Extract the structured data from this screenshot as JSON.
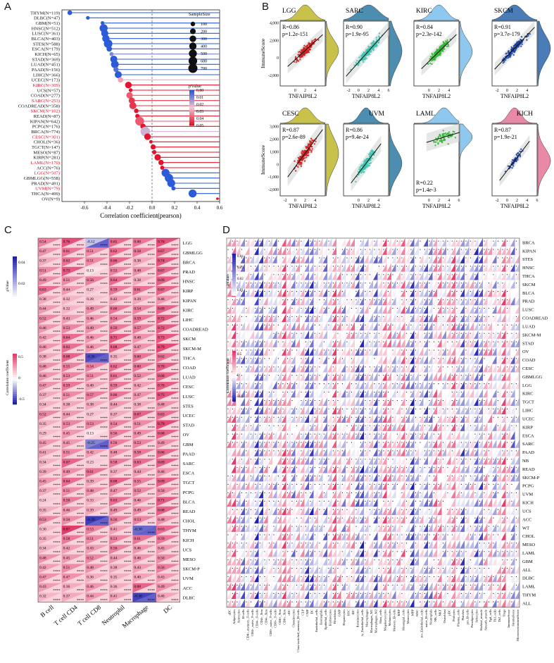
{
  "figure": {
    "panel_a_letter": "A",
    "panel_b_letter": "B",
    "panel_c_letter": "C",
    "panel_d_letter": "D"
  },
  "colors": {
    "p_high": "#2b5bd8",
    "p_mid": "#f5c6d4",
    "p_low": "#e4122b",
    "pos_corr": "#e23c6a",
    "neg_corr": "#1f1fb0",
    "scatter": [
      "#cc1f1f",
      "#3bc4b0",
      "#2fb62f",
      "#1c3e9c",
      "#cc1f1f",
      "#3bc4b0",
      "#2fb62f",
      "#1c3e9c"
    ],
    "density": [
      "#c8c24a",
      "#4c8db0",
      "#8ec8ee",
      "#4a7db8",
      "#c8c24a",
      "#4c8db0",
      "#8ec8ee",
      "#e88aa6"
    ]
  },
  "chart_data": [
    {
      "type": "scatter",
      "panel": "A",
      "title": "",
      "xlabel": "Correlation coefficient(pearson)",
      "ylabel": "",
      "xlim": [
        -0.8,
        0.6
      ],
      "xticks": [
        "-0.6",
        "-0.4",
        "-0.2",
        "0.0",
        "0.2",
        "0.4",
        "0.6"
      ],
      "xtick_values": [
        -0.6,
        -0.4,
        -0.2,
        0.0,
        0.2,
        0.4,
        0.6
      ],
      "categories": [
        "THYM(N=119)",
        "DLBC(N=47)",
        "GBM(N=51)",
        "HNSC(N=512)",
        "LUSC(N=361)",
        "BLCA(N=403)",
        "STES(N=588)",
        "ESCA(N=179)",
        "KICH(N=65)",
        "STAD(N=369)",
        "LUAD(N=451)",
        "PAAD(N=156)",
        "LIHC(N=366)",
        "UCEC(N=173)",
        "KIRC(N=309)",
        "UCS(N=57)",
        "COAD(N=277)",
        "SARC(N=253)",
        "COADREAD(N=358)",
        "SKCM(N=102)",
        "READ(N=87)",
        "KIPAN(N=642)",
        "PCPG(N=176)",
        "BRCA(N=774)",
        "CESC(N=301)",
        "CHOL(N=36)",
        "TGCT(N=147)",
        "MESO(N=87)",
        "KIRP(N=281)",
        "LAML(N=170)",
        "ACC(N=76)",
        "LGG(N=507)",
        "GBMLGG(N=558)",
        "PRAD(N=491)",
        "UVM(N=79)",
        "THCA(N=499)",
        "OV(N=9)"
      ],
      "highlight": [
        "KIRC(N=309)",
        "SARC(N=253)",
        "SKCM(N=102)",
        "CESC(N=301)",
        "LAML(N=170)",
        "LGG(N=507)",
        "UVM(N=79)"
      ],
      "values": [
        -0.73,
        -0.57,
        -0.44,
        -0.43,
        -0.42,
        -0.41,
        -0.39,
        -0.38,
        -0.36,
        -0.34,
        -0.33,
        -0.32,
        -0.3,
        -0.28,
        -0.21,
        -0.19,
        -0.2,
        -0.18,
        -0.17,
        -0.14,
        -0.13,
        -0.11,
        -0.08,
        -0.06,
        -0.04,
        -0.01,
        0.01,
        0.02,
        0.05,
        0.08,
        0.09,
        0.12,
        0.15,
        0.17,
        0.19,
        0.36,
        0.58
      ],
      "pvalues": [
        0.0,
        0.0,
        0.0,
        0.0,
        0.0,
        0.0,
        0.0,
        0.0,
        0.01,
        0.0,
        0.0,
        0.005,
        0.0,
        0.03,
        0.05,
        0.05,
        0.04,
        0.045,
        0.045,
        0.05,
        0.05,
        0.04,
        0.05,
        0.02,
        0.05,
        0.05,
        0.05,
        0.05,
        0.05,
        0.05,
        0.05,
        0.0,
        0.0,
        0.0,
        0.0,
        0.0,
        0.05
      ],
      "sizes": [
        119,
        47,
        51,
        512,
        361,
        403,
        588,
        179,
        65,
        369,
        451,
        156,
        366,
        173,
        309,
        57,
        277,
        253,
        358,
        102,
        87,
        642,
        176,
        774,
        301,
        36,
        147,
        87,
        281,
        170,
        76,
        507,
        558,
        491,
        79,
        499,
        9
      ],
      "legend_size": {
        "title": "SampleSize",
        "labels": [
          "100",
          "200",
          "300",
          "400",
          "500",
          "600",
          "700"
        ],
        "values": [
          100,
          200,
          300,
          400,
          500,
          600,
          700
        ]
      },
      "legend_p": {
        "title": "pValue",
        "labels": [
          "0.00",
          "0.01",
          "0.02",
          "0.03",
          "0.04",
          "0.05"
        ]
      }
    },
    {
      "type": "scatter",
      "panel": "B",
      "ylabel": "ImmuneScore",
      "xlabel": "TNFAIP8L2",
      "row1_yticks": [
        "4,000",
        "2,000",
        "0",
        "-2,000"
      ],
      "row1_ytick_values": [
        4000,
        2000,
        0,
        -2000
      ],
      "row2_yticks": [
        "3,000",
        "2,000",
        "1,000",
        "0",
        "-1,000",
        "-2,000"
      ],
      "row2_ytick_values": [
        3000,
        2000,
        1000,
        0,
        -1000,
        -2000
      ],
      "ylim_row1": [
        -3200,
        4200
      ],
      "ylim_row2": [
        -2500,
        3200
      ],
      "xlim": [
        -3,
        6
      ],
      "xticks": [
        "-2",
        "0",
        "2",
        "4",
        "6"
      ],
      "xtick_values": [
        -2,
        0,
        2,
        4,
        6
      ],
      "subplots": [
        {
          "name": "LGG",
          "r": "R=0.86",
          "p": "p=1.2e-151",
          "slope": 520,
          "intercept": -200,
          "xrange": [
            -1,
            5
          ],
          "spread": 500,
          "xticks": [
            "0",
            "2",
            "4"
          ],
          "xtick_values": [
            0,
            2,
            4
          ]
        },
        {
          "name": "SARC",
          "r": "R=0.90",
          "p": "p=1.9e-95",
          "slope": 640,
          "intercept": -500,
          "xrange": [
            -2,
            6
          ],
          "spread": 500,
          "xticks": [
            "-2",
            "0",
            "2",
            "4",
            "6"
          ],
          "xtick_values": [
            -2,
            0,
            2,
            4,
            6
          ]
        },
        {
          "name": "KIRC",
          "r": "R=0.84",
          "p": "p=2.3e-142",
          "slope": 560,
          "intercept": -400,
          "xrange": [
            -1,
            5
          ],
          "spread": 500,
          "xticks": [
            "0",
            "2",
            "4"
          ],
          "xtick_values": [
            0,
            2,
            4
          ]
        },
        {
          "name": "SKCM",
          "r": "R=0.91",
          "p": "p=3.7e-179",
          "slope": 600,
          "intercept": 200,
          "xrange": [
            -2,
            5
          ],
          "spread": 450,
          "xticks": [
            "-2",
            "0",
            "2",
            "4"
          ],
          "xtick_values": [
            -2,
            0,
            2,
            4
          ]
        },
        {
          "name": "CESC",
          "r": "R=0.87",
          "p": "p=2.6e-89",
          "slope": 540,
          "intercept": -200,
          "xrange": [
            -1,
            5
          ],
          "spread": 450,
          "xticks": [
            "-2",
            "0",
            "2",
            "4"
          ],
          "xtick_values": [
            -2,
            0,
            2,
            4
          ]
        },
        {
          "name": "UVM",
          "r": "R=0.86",
          "p": "p=9.4e-24",
          "slope": 520,
          "intercept": -700,
          "xrange": [
            -1,
            4
          ],
          "spread": 400,
          "xticks": [
            "0",
            "2",
            "4"
          ],
          "xtick_values": [
            0,
            2,
            4
          ]
        },
        {
          "name": "LAML",
          "r": "R=0.22",
          "p": "p=1.4e-3",
          "slope": 120,
          "intercept": 1800,
          "xrange": [
            0,
            6
          ],
          "spread": 450,
          "xticks": [
            "0",
            "2",
            "4",
            "6"
          ],
          "xtick_values": [
            0,
            2,
            4,
            6
          ]
        },
        {
          "name": "KICH",
          "r": "R=0.87",
          "p": "p=1.9e-21",
          "slope": 520,
          "intercept": -500,
          "xrange": [
            -1,
            4
          ],
          "spread": 300,
          "xticks": [
            "-2",
            "0",
            "2",
            "4",
            "6"
          ],
          "xtick_values": [
            -2,
            0,
            2,
            4,
            6
          ]
        }
      ]
    },
    {
      "type": "heatmap",
      "panel": "C",
      "columns": [
        "B cell",
        "T cell CD4",
        "T cell CD8",
        "Neutrophil",
        "Macrophage",
        "DC"
      ],
      "rows": [
        "LGG",
        "GBMLGG",
        "BRCA",
        "PRAD",
        "HNSC",
        "KIRP",
        "KIPAN",
        "KIRC",
        "LIHC",
        "COADREAD",
        "SKCM",
        "SKCM-M",
        "THCA",
        "COAD",
        "LUAD",
        "CESC",
        "LUSC",
        "STES",
        "UCEC",
        "STAD",
        "OV",
        "GBM",
        "PAAD",
        "SARC",
        "ESCA",
        "TGCT",
        "PCPG",
        "BLCA",
        "READ",
        "CHOL",
        "THYM",
        "KICH",
        "UCS",
        "MESO",
        "SKCM-P",
        "UVM",
        "ACC",
        "DLBC"
      ],
      "values": [
        [
          0.54,
          0.76,
          -0.12,
          0.65,
          0.6,
          0.76
        ],
        [
          0.47,
          0.61,
          0.51,
          0.62,
          0.58,
          0.67
        ],
        [
          0.37,
          0.62,
          0.51,
          0.66,
          0.38,
          0.74
        ],
        [
          0.51,
          0.73,
          0.13,
          0.53,
          0.48,
          0.67
        ],
        [
          0.49,
          0.51,
          0.56,
          0.64,
          0.38,
          0.69
        ],
        [
          0.63,
          0.44,
          0.27,
          0.59,
          0.61,
          0.67
        ],
        [
          0.38,
          0.32,
          0.28,
          0.42,
          0.39,
          0.46
        ],
        [
          0.44,
          0.32,
          0.49,
          0.6,
          0.54,
          0.69
        ],
        [
          0.52,
          0.43,
          0.46,
          0.54,
          0.59,
          0.72
        ],
        [
          0.46,
          0.53,
          0.49,
          0.59,
          0.57,
          0.72
        ],
        [
          0.42,
          0.64,
          0.46,
          0.71,
          0.48,
          0.73
        ],
        [
          0.46,
          0.63,
          0.46,
          0.68,
          0.47,
          0.79
        ],
        [
          0.38,
          0.68,
          -0.36,
          0.35,
          0.6,
          0.62
        ],
        [
          0.48,
          0.55,
          0.54,
          0.62,
          0.6,
          0.7
        ],
        [
          0.46,
          0.53,
          0.51,
          0.61,
          0.52,
          0.68
        ],
        [
          0.47,
          0.59,
          0.4,
          0.59,
          0.42,
          0.7
        ],
        [
          0.37,
          0.51,
          0.57,
          0.6,
          0.47,
          0.75
        ],
        [
          0.34,
          0.38,
          0.38,
          0.44,
          0.38,
          0.48
        ],
        [
          0.52,
          0.44,
          0.27,
          0.37,
          0.67,
          0.63
        ],
        [
          0.35,
          0.53,
          0.53,
          0.54,
          0.51,
          0.79
        ],
        [
          0.29,
          0.45,
          0.13,
          0.56,
          0.49,
          0.68
        ],
        [
          0.45,
          0.45,
          -0.25,
          0.56,
          0.53,
          0.49
        ],
        [
          0.41,
          0.51,
          0.42,
          0.48,
          0.58,
          0.66
        ],
        [
          0.34,
          0.67,
          0.23,
          0.58,
          0.63,
          0.69
        ],
        [
          0.39,
          0.49,
          0.61,
          0.37,
          0.44,
          0.46
        ],
        [
          0.45,
          0.64,
          0.39,
          0.68,
          0.55,
          0.69
        ],
        [
          0.37,
          0.51,
          0.48,
          0.47,
          0.52,
          0.5
        ],
        [
          0.24,
          0.58,
          0.33,
          0.63,
          0.46,
          0.71
        ],
        [
          0.35,
          0.46,
          0.39,
          0.49,
          0.49,
          0.68
        ],
        [
          0.53,
          0.5,
          -0.39,
          0.56,
          0.53,
          0.48
        ],
        [
          0.3,
          0.87,
          0.53,
          0.41,
          -0.3,
          0.63
        ],
        [
          0.35,
          0.58,
          0.51,
          0.53,
          0.61,
          0.59
        ],
        [
          0.34,
          0.42,
          0.43,
          0.56,
          0.46,
          0.45
        ],
        [
          0.48,
          0.45,
          0.52,
          0.44,
          0.46,
          0.5
        ],
        [
          0.42,
          0.51,
          0.48,
          0.38,
          0.43,
          0.56
        ],
        [
          0.47,
          0.47,
          0.36,
          0.35,
          0.4,
          0.43
        ],
        [
          0.43,
          0.36,
          0.46,
          0.36,
          0.68,
          0.49
        ],
        [
          0.32,
          0.37,
          0.44,
          0.41,
          -0.38,
          0.4
        ]
      ],
      "stars": "****",
      "legend_p": {
        "title": "pValue",
        "labels": [
          "0.04",
          "0.02"
        ]
      },
      "legend_r": {
        "title": "Correlation coefficient",
        "labels": [
          "0.5",
          "0",
          "-0.5"
        ]
      }
    },
    {
      "type": "heatmap",
      "panel": "D",
      "rows": [
        "BRCA",
        "KIPAN",
        "STES",
        "HNSC",
        "THCA",
        "SKCM",
        "BLCA",
        "PRAD",
        "LUSC",
        "COADREAD",
        "LUAD",
        "SKCM-M",
        "STAD",
        "OV",
        "COAD",
        "CESC",
        "GBMLGG",
        "LGG",
        "KIRC",
        "TGCT",
        "LIHC",
        "UCEC",
        "KIRP",
        "ESCA",
        "SARC",
        "PAAD",
        "NB",
        "READ",
        "SKCM-P",
        "PCPG",
        "UVM",
        "KICH",
        "UCS",
        "ACC",
        "WT",
        "CHOL",
        "MESO",
        "LAML",
        "GBM",
        "ALL",
        "DLBC",
        "LAML",
        "THYM",
        "ALL"
      ],
      "columns": [
        "aDC",
        "Adipocytes",
        "Astrocytes",
        "B-cells",
        "CD4+_memory_T-cells",
        "CD4+_naive_T-cells",
        "CD4+_T-cells",
        "CD4+_Tcm",
        "CD4+_Tem",
        "CD8+_naive_T-cells",
        "CD8+_T-cells",
        "CD8+_Tcm",
        "CD8+_Tem",
        "cDC",
        "Chondrocytes",
        "Class-switched_memory_B-cells",
        "CLP",
        "CMP",
        "DC",
        "Endothelial_cells",
        "Eosinophils",
        "Epithelial_cells",
        "Erythrocytes",
        "Fibroblasts",
        "GMP",
        "Hepatocytes",
        "HSC",
        "iDC",
        "Keratinocytes",
        "ly_Endothelial_cells",
        "Macrophages",
        "Macrophages_M1",
        "Macrophages_M2",
        "Mast_cells",
        "Megakaryocytes",
        "Melanocytes",
        "Memory_B-cells",
        "MEP",
        "Mesangial_cells",
        "Monocytes",
        "MPP",
        "MSC",
        "mv_Endothelial_cells",
        "naive_B-cells",
        "Neutrophils",
        "NK_cells",
        "NKT",
        "Osteoblast",
        "pDC",
        "Pericytes",
        "Plasma_cells",
        "Platelets",
        "pro_B-cells",
        "Preadipocytes",
        "Sebocytes",
        "Skeletal_muscle",
        "Smooth_muscle",
        "Tgd_cells",
        "Th1_cells",
        "Th2_cells",
        "Tregs",
        "ImmuneScore",
        "StromaScore",
        "MicroenvironmentScore"
      ],
      "legend_p": {
        "title": "pValue",
        "labels": [
          "0.04",
          "0.03",
          "0.02",
          "0.01"
        ]
      },
      "legend_r": {
        "title": "Correlation coefficient",
        "labels": [
          "0.5",
          "0",
          "-0.5"
        ]
      }
    }
  ]
}
